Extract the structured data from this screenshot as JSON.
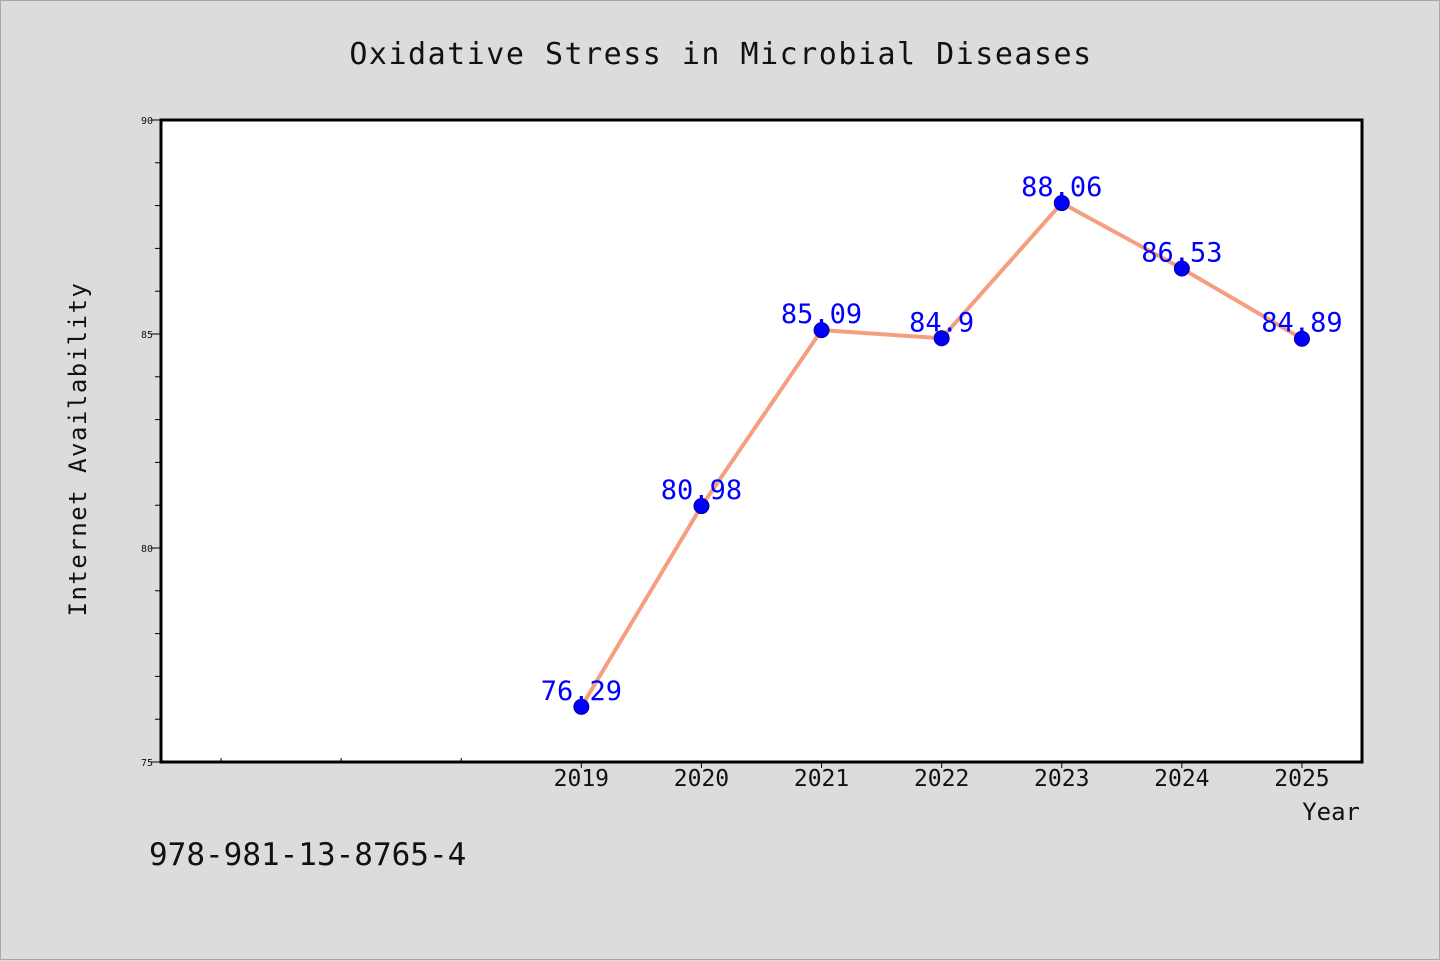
{
  "footer": {
    "code": "978-981-13-8765-4"
  },
  "chart_data": {
    "type": "line",
    "title": "Oxidative Stress in Microbial Diseases",
    "xlabel": "Year",
    "ylabel": "Internet Availability",
    "x": [
      2019,
      2020,
      2021,
      2022,
      2023,
      2024,
      2025
    ],
    "x_tick_labels": [
      "2019",
      "2020",
      "2021",
      "2022",
      "2023",
      "2024",
      "2025"
    ],
    "xlim": [
      2015.5,
      2025.5
    ],
    "ylim": [
      75,
      90
    ],
    "y_ticks": [
      75,
      80,
      85,
      90
    ],
    "y_tick_labels": [
      "75",
      "80",
      "85",
      "90"
    ],
    "y_minor_step": 1,
    "series": [
      {
        "values": [
          76.29,
          80.98,
          85.09,
          84.9,
          88.06,
          86.53,
          84.89
        ],
        "data_labels": [
          "76.29",
          "80.98",
          "85.09",
          "84.9",
          "88.06",
          "86.53",
          "84.89"
        ],
        "line_color": "#f4a080",
        "marker_color": "#0000ff"
      }
    ],
    "grid": false,
    "legend": "none"
  }
}
